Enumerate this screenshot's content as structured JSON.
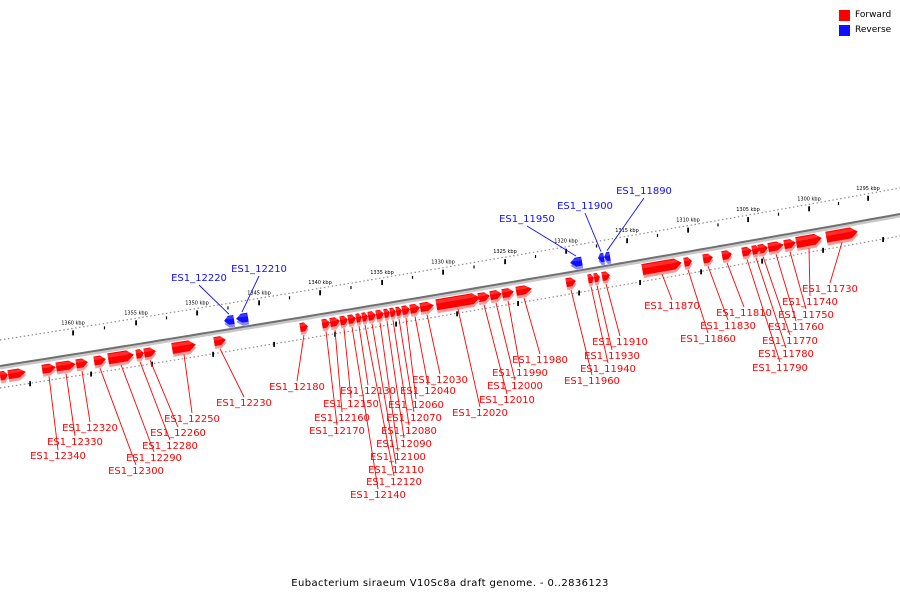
{
  "legend": {
    "forward_label": "Forward",
    "reverse_label": "Reverse",
    "forward_color": "#ff0000",
    "reverse_color": "#1010ff"
  },
  "caption": "Eubacterium siraeum V10Sc8a draft genome. - 0..2836123",
  "scale_labels": [
    "1295 kbp",
    "1300 kbp",
    "1305 kbp",
    "1310 kbp",
    "1315 kbp",
    "1320 kbp",
    "1325 kbp",
    "1330 kbp",
    "1335 kbp",
    "1340 kbp",
    "1345 kbp",
    "1350 kbp",
    "1355 kbp",
    "1360 kbp"
  ],
  "genes": [
    {
      "name": "ES1_11730",
      "strand": "forward"
    },
    {
      "name": "ES1_11740",
      "strand": "forward"
    },
    {
      "name": "ES1_11750",
      "strand": "forward"
    },
    {
      "name": "ES1_11760",
      "strand": "forward"
    },
    {
      "name": "ES1_11770",
      "strand": "forward"
    },
    {
      "name": "ES1_11780",
      "strand": "forward"
    },
    {
      "name": "ES1_11790",
      "strand": "forward"
    },
    {
      "name": "ES1_11810",
      "strand": "forward"
    },
    {
      "name": "ES1_11830",
      "strand": "forward"
    },
    {
      "name": "ES1_11860",
      "strand": "forward"
    },
    {
      "name": "ES1_11870",
      "strand": "forward"
    },
    {
      "name": "ES1_11890",
      "strand": "reverse"
    },
    {
      "name": "ES1_11900",
      "strand": "reverse"
    },
    {
      "name": "ES1_11910",
      "strand": "forward"
    },
    {
      "name": "ES1_11930",
      "strand": "forward"
    },
    {
      "name": "ES1_11940",
      "strand": "forward"
    },
    {
      "name": "ES1_11950",
      "strand": "reverse"
    },
    {
      "name": "ES1_11960",
      "strand": "forward"
    },
    {
      "name": "ES1_11980",
      "strand": "forward"
    },
    {
      "name": "ES1_11990",
      "strand": "forward"
    },
    {
      "name": "ES1_12000",
      "strand": "forward"
    },
    {
      "name": "ES1_12010",
      "strand": "forward"
    },
    {
      "name": "ES1_12020",
      "strand": "forward"
    },
    {
      "name": "ES1_12030",
      "strand": "forward"
    },
    {
      "name": "ES1_12040",
      "strand": "forward"
    },
    {
      "name": "ES1_12060",
      "strand": "forward"
    },
    {
      "name": "ES1_12070",
      "strand": "forward"
    },
    {
      "name": "ES1_12080",
      "strand": "forward"
    },
    {
      "name": "ES1_12090",
      "strand": "forward"
    },
    {
      "name": "ES1_12100",
      "strand": "forward"
    },
    {
      "name": "ES1_12110",
      "strand": "forward"
    },
    {
      "name": "ES1_12120",
      "strand": "forward"
    },
    {
      "name": "ES1_12130",
      "strand": "forward"
    },
    {
      "name": "ES1_12140",
      "strand": "forward"
    },
    {
      "name": "ES1_12150",
      "strand": "forward"
    },
    {
      "name": "ES1_12160",
      "strand": "forward"
    },
    {
      "name": "ES1_12170",
      "strand": "forward"
    },
    {
      "name": "ES1_12180",
      "strand": "forward"
    },
    {
      "name": "ES1_12210",
      "strand": "reverse"
    },
    {
      "name": "ES1_12220",
      "strand": "reverse"
    },
    {
      "name": "ES1_12230",
      "strand": "forward"
    },
    {
      "name": "ES1_12250",
      "strand": "forward"
    },
    {
      "name": "ES1_12260",
      "strand": "forward"
    },
    {
      "name": "ES1_12280",
      "strand": "forward"
    },
    {
      "name": "ES1_12290",
      "strand": "forward"
    },
    {
      "name": "ES1_12300",
      "strand": "forward"
    },
    {
      "name": "ES1_12320",
      "strand": "forward"
    },
    {
      "name": "ES1_12330",
      "strand": "forward"
    },
    {
      "name": "ES1_12340",
      "strand": "forward"
    }
  ]
}
